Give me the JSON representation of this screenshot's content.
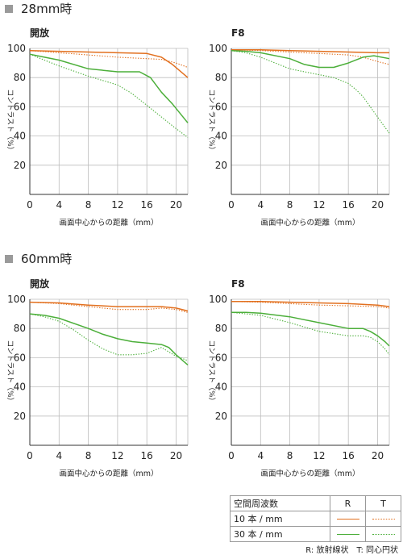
{
  "sections": [
    {
      "heading": "28mm時"
    },
    {
      "heading": "60mm時"
    }
  ],
  "colors": {
    "r10": "#e2701f",
    "t10": "#e2701f",
    "r30": "#4caf3a",
    "t30": "#4caf3a"
  },
  "chart_data": [
    {
      "type": "line",
      "title": "開放",
      "xlabel": "画面中心からの距離（mm）",
      "ylabel": "コントラスト（%）",
      "xlim": [
        0,
        21.6
      ],
      "ylim": [
        0,
        100
      ],
      "xticks": [
        0,
        4,
        8,
        12,
        16,
        20
      ],
      "yticks": [
        20,
        40,
        60,
        80,
        100
      ],
      "series": [
        {
          "name": "10本/mm R",
          "style": "solid",
          "x": [
            0,
            4,
            8,
            12,
            16,
            18,
            19.5,
            21.6
          ],
          "y": [
            98.5,
            98,
            97.5,
            97,
            96.5,
            94,
            89,
            80
          ]
        },
        {
          "name": "10本/mm T",
          "style": "dotted",
          "x": [
            0,
            4,
            8,
            12,
            16,
            18,
            20,
            21.6
          ],
          "y": [
            98.5,
            97,
            95.5,
            94,
            93,
            92.5,
            90,
            87
          ]
        },
        {
          "name": "30本/mm R",
          "style": "solid",
          "x": [
            0,
            2,
            4,
            8,
            12,
            15,
            16.5,
            18,
            19.5,
            21.6
          ],
          "y": [
            96,
            94,
            92,
            86,
            84,
            84,
            80,
            70,
            62,
            49
          ]
        },
        {
          "name": "30本/mm T",
          "style": "dotted",
          "x": [
            0,
            2,
            4,
            8,
            12,
            14,
            16,
            18,
            20,
            21.6
          ],
          "y": [
            96,
            92,
            88,
            81,
            75,
            69,
            61,
            53,
            45,
            39
          ]
        }
      ]
    },
    {
      "type": "line",
      "title": "F8",
      "xlabel": "画面中心からの距離（mm）",
      "ylabel": "コントラスト（%）",
      "xlim": [
        0,
        21.6
      ],
      "ylim": [
        0,
        100
      ],
      "xticks": [
        0,
        4,
        8,
        12,
        16,
        20
      ],
      "yticks": [
        20,
        40,
        60,
        80,
        100
      ],
      "series": [
        {
          "name": "10本/mm R",
          "style": "solid",
          "x": [
            0,
            4,
            8,
            12,
            16,
            20,
            21.6
          ],
          "y": [
            99,
            99,
            98.5,
            98,
            97.5,
            97,
            97
          ]
        },
        {
          "name": "10本/mm T",
          "style": "dotted",
          "x": [
            0,
            4,
            8,
            12,
            16,
            18,
            20,
            21.6
          ],
          "y": [
            99,
            98.5,
            97.5,
            96.5,
            95.5,
            94,
            91,
            89
          ]
        },
        {
          "name": "30本/mm R",
          "style": "solid",
          "x": [
            0,
            2,
            4,
            8,
            10,
            12,
            14,
            16,
            18,
            19.5,
            21.6
          ],
          "y": [
            98.5,
            98,
            97,
            93,
            89,
            87,
            87,
            90,
            94,
            95,
            93
          ]
        },
        {
          "name": "30本/mm T",
          "style": "dotted",
          "x": [
            0,
            2,
            4,
            6,
            8,
            10,
            12,
            14,
            16,
            17,
            18,
            19,
            20,
            21,
            21.6
          ],
          "y": [
            98.5,
            97,
            94,
            90,
            86,
            84,
            82,
            80,
            76,
            72,
            67,
            60,
            53,
            46,
            42
          ]
        }
      ]
    },
    {
      "type": "line",
      "title": "開放",
      "xlabel": "画面中心からの距離（mm）",
      "ylabel": "コントラスト（%）",
      "xlim": [
        0,
        21.6
      ],
      "ylim": [
        0,
        100
      ],
      "xticks": [
        0,
        4,
        8,
        12,
        16,
        20
      ],
      "yticks": [
        20,
        40,
        60,
        80,
        100
      ],
      "series": [
        {
          "name": "10本/mm R",
          "style": "solid",
          "x": [
            0,
            4,
            8,
            12,
            16,
            18,
            20,
            21.6
          ],
          "y": [
            98,
            97.5,
            96,
            95,
            95,
            95,
            94,
            92
          ]
        },
        {
          "name": "10本/mm T",
          "style": "dotted",
          "x": [
            0,
            4,
            8,
            12,
            16,
            18,
            20,
            21.6
          ],
          "y": [
            98,
            97,
            95,
            93,
            93,
            94,
            93,
            91
          ]
        },
        {
          "name": "30本/mm R",
          "style": "solid",
          "x": [
            0,
            2,
            4,
            8,
            10,
            12,
            14,
            16,
            18,
            19,
            20,
            21.6
          ],
          "y": [
            90,
            89,
            87,
            80,
            76,
            73,
            71,
            70,
            69,
            67,
            62,
            55
          ]
        },
        {
          "name": "30本/mm T",
          "style": "dotted",
          "x": [
            0,
            2,
            4,
            6,
            8,
            10,
            12,
            14,
            16,
            17,
            18,
            19,
            20,
            21.6
          ],
          "y": [
            90,
            88,
            85,
            79,
            72,
            66,
            62,
            62,
            63,
            65,
            67,
            64,
            61,
            58
          ]
        }
      ]
    },
    {
      "type": "line",
      "title": "F8",
      "xlabel": "画面中心からの距離（mm）",
      "ylabel": "コントラスト（%）",
      "xlim": [
        0,
        21.6
      ],
      "ylim": [
        0,
        100
      ],
      "xticks": [
        0,
        4,
        8,
        12,
        16,
        20
      ],
      "yticks": [
        20,
        40,
        60,
        80,
        100
      ],
      "series": [
        {
          "name": "10本/mm R",
          "style": "solid",
          "x": [
            0,
            4,
            8,
            12,
            16,
            20,
            21.6
          ],
          "y": [
            98.5,
            98.5,
            98,
            97.5,
            97,
            96,
            95
          ]
        },
        {
          "name": "10本/mm T",
          "style": "dotted",
          "x": [
            0,
            4,
            8,
            12,
            16,
            20,
            21.6
          ],
          "y": [
            98.5,
            98,
            97,
            96,
            95.5,
            95,
            94
          ]
        },
        {
          "name": "30本/mm R",
          "style": "solid",
          "x": [
            0,
            2,
            4,
            8,
            12,
            16,
            18,
            19,
            20,
            21,
            21.6
          ],
          "y": [
            91,
            91,
            90.5,
            88,
            84,
            80,
            80,
            78,
            75,
            71,
            68
          ]
        },
        {
          "name": "30本/mm T",
          "style": "dotted",
          "x": [
            0,
            2,
            4,
            8,
            12,
            16,
            18,
            19,
            20,
            21,
            21.6
          ],
          "y": [
            91,
            90,
            89,
            84,
            78,
            75,
            75,
            74,
            71,
            66,
            62
          ]
        }
      ]
    }
  ],
  "legend": {
    "header": {
      "freq": "空間周波数",
      "r": "R",
      "t": "T"
    },
    "rows": [
      {
        "label": "10 本 / mm",
        "r_key": "r10",
        "t_key": "t10"
      },
      {
        "label": "30 本 / mm",
        "r_key": "r30",
        "t_key": "t30"
      }
    ]
  },
  "footnote": "R: 放射線状　T: 同心円状"
}
